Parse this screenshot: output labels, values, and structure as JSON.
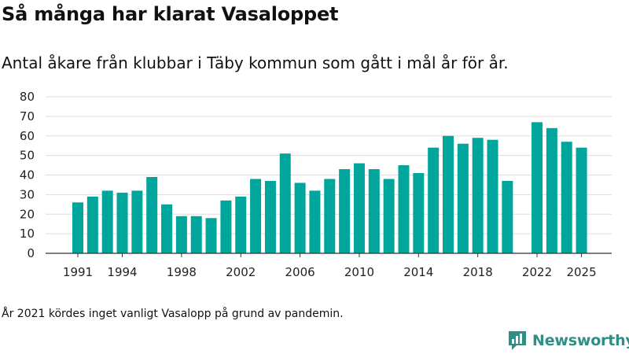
{
  "title": "Så många har klarat Vasaloppet",
  "subtitle": "Antal åkare från klubbar i Täby kommun som gått i mål år för år.",
  "footnote": "År 2021 kördes inget vanligt Vasalopp på grund av pandemin.",
  "brand": {
    "name": "Newsworthy",
    "color": "#2f8e85"
  },
  "chart_data": {
    "type": "bar",
    "color": "#00a59b",
    "x": [
      1991,
      1992,
      1993,
      1994,
      1995,
      1996,
      1997,
      1998,
      1999,
      2000,
      2001,
      2002,
      2003,
      2004,
      2005,
      2006,
      2007,
      2008,
      2009,
      2010,
      2011,
      2012,
      2013,
      2014,
      2015,
      2016,
      2017,
      2018,
      2019,
      2020,
      2021,
      2022,
      2023,
      2024,
      2025
    ],
    "values": [
      26,
      29,
      32,
      31,
      32,
      39,
      25,
      19,
      19,
      18,
      27,
      29,
      38,
      37,
      51,
      36,
      32,
      38,
      43,
      46,
      43,
      38,
      45,
      41,
      54,
      60,
      56,
      59,
      58,
      37,
      null,
      67,
      64,
      57,
      54
    ],
    "xticks": [
      1991,
      1994,
      1998,
      2002,
      2006,
      2010,
      2014,
      2018,
      2022,
      2025
    ],
    "yticks": [
      0,
      10,
      20,
      30,
      40,
      50,
      60,
      70,
      80
    ],
    "ylim": [
      0,
      80
    ],
    "grid": true,
    "legend": false
  }
}
